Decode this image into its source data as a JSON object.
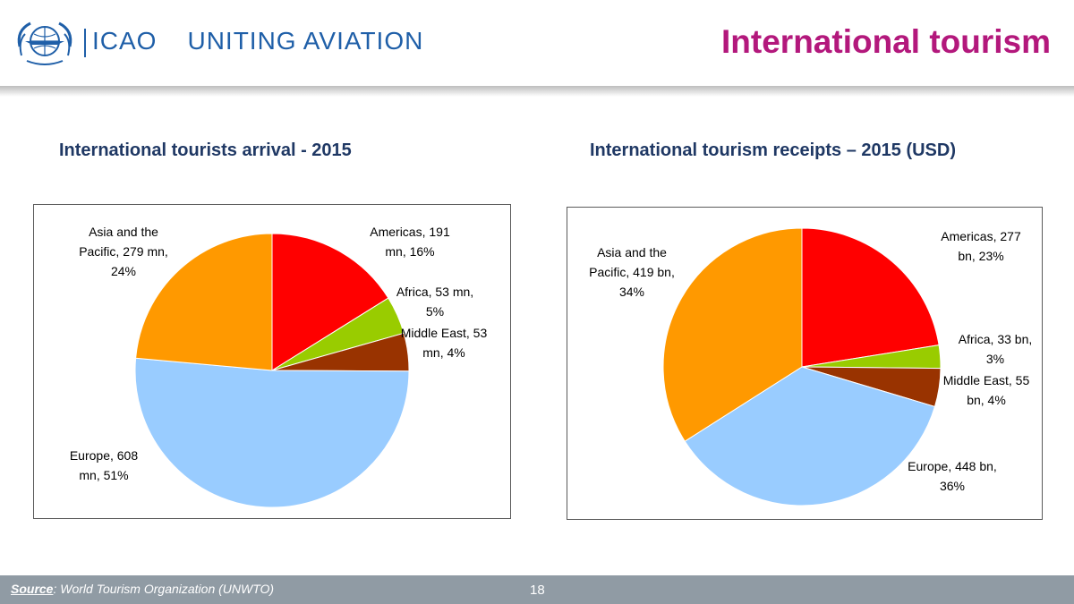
{
  "header": {
    "logo_name": "ICAO",
    "slogan": "UNITING AVIATION",
    "title": "International tourism"
  },
  "footer": {
    "source_key": "Source",
    "source_text": ": World Tourism Organization (UNWTO)",
    "page_number": "18"
  },
  "icons": {
    "logo": "icao-emblem-icon"
  },
  "chart_data": [
    {
      "type": "pie",
      "title": "International tourists arrival - 2015",
      "slices": [
        {
          "lines": [
            "Americas, 191",
            "mn, 16%"
          ],
          "value": 191,
          "color": "#ff0000"
        },
        {
          "lines": [
            "Africa, 53 mn,",
            "5%"
          ],
          "value": 53,
          "color": "#99cc00"
        },
        {
          "lines": [
            "Middle East, 53",
            "mn, 4%"
          ],
          "value": 53,
          "color": "#993300"
        },
        {
          "lines": [
            "Europe, 608",
            "mn, 51%"
          ],
          "value": 608,
          "color": "#99ccff"
        },
        {
          "lines": [
            "Asia and the",
            "Pacific, 279 mn,",
            "24%"
          ],
          "value": 279,
          "color": "#ff9900"
        }
      ]
    },
    {
      "type": "pie",
      "title": "International tourism receipts – 2015 (USD)",
      "slices": [
        {
          "lines": [
            "Americas, 277",
            "bn, 23%"
          ],
          "value": 277,
          "color": "#ff0000"
        },
        {
          "lines": [
            "Africa, 33 bn,",
            "3%"
          ],
          "value": 33,
          "color": "#99cc00"
        },
        {
          "lines": [
            "Middle East, 55",
            "bn, 4%"
          ],
          "value": 55,
          "color": "#993300"
        },
        {
          "lines": [
            "Europe, 448 bn,",
            "36%"
          ],
          "value": 448,
          "color": "#99ccff"
        },
        {
          "lines": [
            "Asia and the",
            "Pacific, 419 bn,",
            "34%"
          ],
          "value": 419,
          "color": "#ff9900"
        }
      ]
    }
  ]
}
